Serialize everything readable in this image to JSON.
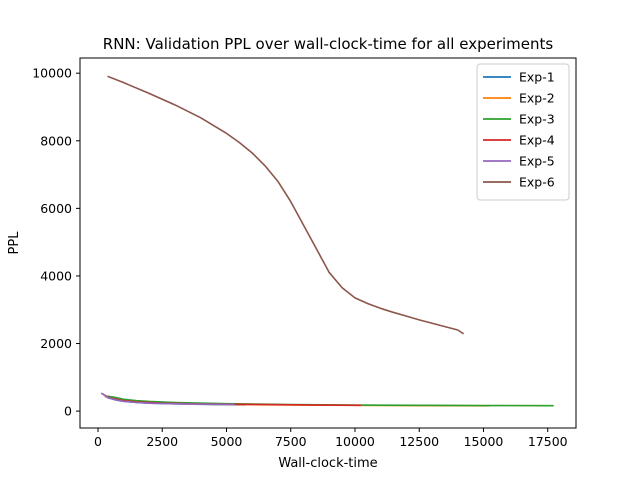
{
  "chart_data": {
    "type": "line",
    "title": "RNN: Validation PPL over wall-clock-time for all experiments",
    "xlabel": "Wall-clock-time",
    "ylabel": "PPL",
    "xlim": [
      -700,
      18600
    ],
    "ylim": [
      -500,
      10450
    ],
    "xticks": [
      0,
      2500,
      5000,
      7500,
      10000,
      12500,
      15000,
      17500
    ],
    "yticks": [
      0,
      2000,
      4000,
      6000,
      8000,
      10000
    ],
    "grid": false,
    "legend_position": "top-right",
    "series": [
      {
        "name": "Exp-1",
        "color": "#1f77b4",
        "points": [
          [
            200,
            500
          ],
          [
            400,
            390
          ],
          [
            700,
            330
          ],
          [
            1000,
            290
          ],
          [
            1500,
            255
          ],
          [
            2000,
            235
          ],
          [
            3000,
            215
          ],
          [
            4000,
            200
          ],
          [
            5000,
            190
          ],
          [
            5700,
            185
          ]
        ]
      },
      {
        "name": "Exp-2",
        "color": "#ff7f0e",
        "points": [
          [
            200,
            500
          ],
          [
            500,
            380
          ],
          [
            1000,
            300
          ],
          [
            1500,
            260
          ],
          [
            2500,
            230
          ],
          [
            4000,
            205
          ],
          [
            6000,
            190
          ],
          [
            8000,
            180
          ],
          [
            10000,
            170
          ],
          [
            12000,
            165
          ],
          [
            14000,
            160
          ],
          [
            15200,
            158
          ]
        ]
      },
      {
        "name": "Exp-3",
        "color": "#2ca02c",
        "points": [
          [
            400,
            440
          ],
          [
            700,
            400
          ],
          [
            1000,
            350
          ],
          [
            1500,
            310
          ],
          [
            2000,
            285
          ],
          [
            3000,
            255
          ],
          [
            5000,
            220
          ],
          [
            7500,
            195
          ],
          [
            10000,
            180
          ],
          [
            12500,
            170
          ],
          [
            15000,
            165
          ],
          [
            17700,
            160
          ]
        ]
      },
      {
        "name": "Exp-4",
        "color": "#d62728",
        "points": [
          [
            300,
            430
          ],
          [
            600,
            370
          ],
          [
            1000,
            310
          ],
          [
            1500,
            270
          ],
          [
            2500,
            235
          ],
          [
            4000,
            210
          ],
          [
            5500,
            200
          ],
          [
            7000,
            190
          ],
          [
            8500,
            180
          ],
          [
            10200,
            172
          ]
        ]
      },
      {
        "name": "Exp-5",
        "color": "#9467bd",
        "points": [
          [
            150,
            520
          ],
          [
            400,
            400
          ],
          [
            700,
            330
          ],
          [
            1000,
            290
          ],
          [
            1500,
            255
          ],
          [
            2000,
            235
          ],
          [
            3000,
            215
          ],
          [
            4000,
            205
          ],
          [
            5300,
            198
          ]
        ]
      },
      {
        "name": "Exp-6",
        "color": "#8c564b",
        "points": [
          [
            400,
            9900
          ],
          [
            1000,
            9720
          ],
          [
            2000,
            9400
          ],
          [
            3000,
            9060
          ],
          [
            4000,
            8680
          ],
          [
            5000,
            8220
          ],
          [
            5500,
            7950
          ],
          [
            6000,
            7640
          ],
          [
            6500,
            7260
          ],
          [
            7000,
            6800
          ],
          [
            7500,
            6200
          ],
          [
            8000,
            5500
          ],
          [
            8500,
            4800
          ],
          [
            9000,
            4100
          ],
          [
            9500,
            3650
          ],
          [
            10000,
            3350
          ],
          [
            10500,
            3180
          ],
          [
            11000,
            3040
          ],
          [
            11500,
            2920
          ],
          [
            12000,
            2810
          ],
          [
            12500,
            2700
          ],
          [
            13000,
            2600
          ],
          [
            13500,
            2500
          ],
          [
            14000,
            2400
          ],
          [
            14200,
            2300
          ]
        ]
      }
    ]
  }
}
